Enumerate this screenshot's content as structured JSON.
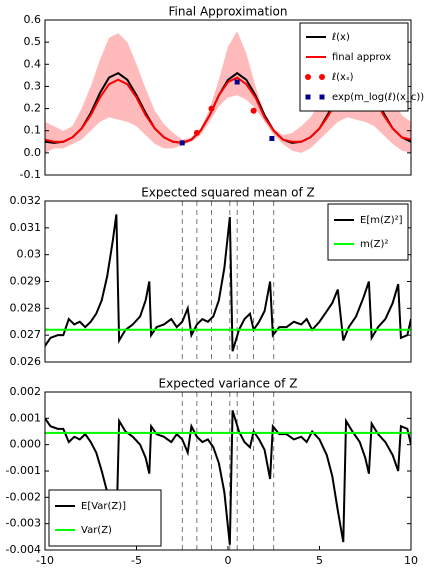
{
  "chart_data": [
    {
      "type": "line",
      "title": "Final Approximation",
      "xlim": [
        -10,
        10
      ],
      "ylim": [
        -0.1,
        0.6
      ],
      "yticks": [
        -0.1,
        {
          "value": 0,
          "label": "0.0"
        },
        0.1,
        0.2,
        0.3,
        0.4,
        0.5,
        0.6
      ],
      "legend": "upper right",
      "x": [
        -10,
        -9.5,
        -9,
        -8.5,
        -8,
        -7.5,
        -7,
        -6.5,
        -6,
        -5.5,
        -5,
        -4.5,
        -4,
        -3.5,
        -3,
        -2.5,
        -2,
        -1.5,
        -1,
        -0.5,
        0,
        0.5,
        1,
        1.5,
        2,
        2.5,
        3,
        3.5,
        4,
        4.5,
        5,
        5.5,
        6,
        6.5,
        7,
        7.5,
        8,
        8.5,
        9,
        9.5,
        10
      ],
      "band": {
        "color": "#ffbbbb",
        "upper": [
          0.14,
          0.12,
          0.1,
          0.12,
          0.2,
          0.3,
          0.42,
          0.52,
          0.54,
          0.5,
          0.4,
          0.29,
          0.19,
          0.13,
          0.09,
          0.06,
          0.07,
          0.11,
          0.2,
          0.33,
          0.48,
          0.55,
          0.45,
          0.3,
          0.18,
          0.11,
          0.08,
          0.09,
          0.12,
          0.16,
          0.22,
          0.3,
          0.4,
          0.5,
          0.55,
          0.52,
          0.44,
          0.34,
          0.24,
          0.17,
          0.14
        ],
        "lower": [
          0.0,
          0.02,
          0.02,
          0.04,
          0.06,
          0.1,
          0.14,
          0.16,
          0.15,
          0.14,
          0.12,
          0.08,
          0.04,
          0.02,
          0.02,
          0.035,
          0.05,
          0.08,
          0.14,
          0.21,
          0.25,
          0.26,
          0.24,
          0.2,
          0.14,
          0.08,
          0.04,
          0.01,
          0.0,
          0.02,
          0.06,
          0.1,
          0.14,
          0.16,
          0.15,
          0.14,
          0.12,
          0.08,
          0.04,
          0.01,
          0.0
        ]
      },
      "series": [
        {
          "name": "ℓ(x)",
          "color": "#000000",
          "kind": "line",
          "values": [
            0.05,
            0.045,
            0.05,
            0.07,
            0.11,
            0.18,
            0.27,
            0.34,
            0.36,
            0.33,
            0.26,
            0.18,
            0.11,
            0.07,
            0.05,
            0.045,
            0.06,
            0.1,
            0.17,
            0.26,
            0.33,
            0.36,
            0.33,
            0.26,
            0.17,
            0.1,
            0.06,
            0.045,
            0.05,
            0.07,
            0.11,
            0.18,
            0.27,
            0.34,
            0.36,
            0.33,
            0.26,
            0.18,
            0.11,
            0.07,
            0.05
          ]
        },
        {
          "name": "final approx",
          "color": "#ff0000",
          "kind": "line",
          "values": [
            0.06,
            0.05,
            0.05,
            0.07,
            0.11,
            0.17,
            0.25,
            0.31,
            0.33,
            0.31,
            0.25,
            0.17,
            0.11,
            0.07,
            0.05,
            0.045,
            0.06,
            0.1,
            0.17,
            0.26,
            0.32,
            0.34,
            0.31,
            0.25,
            0.16,
            0.1,
            0.06,
            0.05,
            0.05,
            0.07,
            0.11,
            0.17,
            0.25,
            0.31,
            0.33,
            0.31,
            0.25,
            0.17,
            0.11,
            0.07,
            0.06
          ]
        },
        {
          "name": "ℓ(xₛ)",
          "color": "#ff0000",
          "kind": "scatter",
          "marker": "circle",
          "x": [
            -1.7,
            -0.9,
            1.4
          ],
          "values": [
            0.09,
            0.2,
            0.19
          ]
        },
        {
          "name": "exp(m_log(ℓ)(x_c))",
          "color": "#00008b",
          "kind": "scatter",
          "marker": "square",
          "x": [
            -2.5,
            0.5,
            2.4
          ],
          "values": [
            0.045,
            0.32,
            0.065
          ]
        }
      ]
    },
    {
      "type": "line",
      "title": "Expected squared mean of Z",
      "xlim": [
        -10,
        10
      ],
      "ylim": [
        0.026,
        0.032
      ],
      "yticks": [
        0.026,
        0.027,
        0.028,
        0.029,
        0.03,
        0.031,
        0.032
      ],
      "legend": "upper right",
      "vlines": [
        -2.5,
        -1.7,
        -0.9,
        0.1,
        0.5,
        1.4,
        2.5
      ],
      "series": [
        {
          "name": "E[m(Z)²]",
          "color": "#000000",
          "kind": "line",
          "x": [
            -10,
            -9.7,
            -9.3,
            -9,
            -8.7,
            -8.4,
            -8.1,
            -7.8,
            -7.5,
            -7.2,
            -6.9,
            -6.6,
            -6.3,
            -6.1,
            -5.95,
            -5.6,
            -5.2,
            -4.8,
            -4.5,
            -4.3,
            -4.2,
            -3.9,
            -3.5,
            -3.1,
            -2.8,
            -2.5,
            -2.2,
            -2.0,
            -1.7,
            -1.4,
            -1.1,
            -0.8,
            -0.5,
            -0.2,
            0.1,
            0.25,
            0.6,
            0.9,
            1.2,
            1.4,
            1.7,
            2.0,
            2.3,
            2.45,
            2.8,
            3.2,
            3.6,
            4.0,
            4.3,
            4.6,
            5.0,
            5.4,
            5.7,
            6.0,
            6.3,
            6.6,
            7.0,
            7.4,
            7.7,
            7.85,
            8.2,
            8.6,
            9.0,
            9.3,
            9.45,
            9.8,
            10
          ],
          "values": [
            0.0266,
            0.0269,
            0.027,
            0.027,
            0.0276,
            0.0274,
            0.0275,
            0.0273,
            0.0275,
            0.0278,
            0.0283,
            0.0292,
            0.0305,
            0.0315,
            0.0268,
            0.0272,
            0.0274,
            0.0277,
            0.0283,
            0.029,
            0.027,
            0.0273,
            0.0274,
            0.0276,
            0.0273,
            0.0275,
            0.028,
            0.027,
            0.0274,
            0.0276,
            0.0275,
            0.0277,
            0.0283,
            0.0295,
            0.0314,
            0.0264,
            0.0272,
            0.0276,
            0.0278,
            0.0272,
            0.0275,
            0.0279,
            0.029,
            0.027,
            0.0273,
            0.0273,
            0.0275,
            0.0274,
            0.0276,
            0.0272,
            0.0275,
            0.0279,
            0.0282,
            0.0287,
            0.0268,
            0.0273,
            0.0277,
            0.0284,
            0.029,
            0.0269,
            0.0273,
            0.0276,
            0.0282,
            0.0289,
            0.0269,
            0.027,
            0.0276
          ]
        },
        {
          "name": "m(Z)²",
          "color": "#00ff00",
          "kind": "hline",
          "values": [
            0.0272
          ]
        }
      ]
    },
    {
      "type": "line",
      "title": "Expected variance of Z",
      "xlim": [
        -10,
        10
      ],
      "ylim": [
        -0.004,
        0.002
      ],
      "xticks": [
        -10,
        -5,
        0,
        5,
        10
      ],
      "yticks": [
        -0.004,
        -0.003,
        -0.002,
        -0.001,
        {
          "value": 0,
          "label": "0.000"
        },
        0.001,
        0.002
      ],
      "legend": "lower left",
      "vlines": [
        -2.5,
        -1.7,
        -0.9,
        0.1,
        0.5,
        1.4,
        2.5
      ],
      "series": [
        {
          "name": "E[Var(Z)]",
          "color": "#000000",
          "kind": "line",
          "x": [
            -10,
            -9.7,
            -9.3,
            -9,
            -8.7,
            -8.4,
            -8.1,
            -7.8,
            -7.5,
            -7.2,
            -6.9,
            -6.6,
            -6.3,
            -6.1,
            -5.95,
            -5.6,
            -5.2,
            -4.8,
            -4.5,
            -4.3,
            -4.2,
            -3.9,
            -3.5,
            -3.1,
            -2.8,
            -2.5,
            -2.2,
            -2.0,
            -1.7,
            -1.4,
            -1.1,
            -0.8,
            -0.5,
            -0.2,
            0.1,
            0.25,
            0.6,
            0.9,
            1.2,
            1.4,
            1.7,
            2.0,
            2.3,
            2.45,
            2.8,
            3.2,
            3.6,
            4.0,
            4.3,
            4.6,
            5.0,
            5.4,
            5.7,
            6.0,
            6.3,
            6.45,
            6.8,
            7.2,
            7.5,
            7.7,
            7.85,
            8.2,
            8.6,
            9.0,
            9.3,
            9.45,
            9.8,
            10
          ],
          "values": [
            0.001,
            0.0007,
            0.0006,
            0.0006,
            0.0001,
            0.0003,
            0.0002,
            0.0004,
            0.0001,
            -0.0003,
            -0.001,
            -0.0018,
            -0.0027,
            -0.0033,
            0.0009,
            0.0005,
            0.0003,
            0.0,
            -0.0005,
            -0.0011,
            0.0007,
            0.0004,
            0.0003,
            0.0001,
            0.0004,
            0.0002,
            -0.0003,
            0.0007,
            0.0003,
            0.0001,
            0.0002,
            -0.0001,
            -0.0007,
            -0.0018,
            -0.0038,
            0.0013,
            0.0005,
            0.0001,
            -0.0001,
            0.0005,
            0.0002,
            -0.0002,
            -0.0013,
            0.0007,
            0.0004,
            0.0004,
            0.0002,
            0.0003,
            0.0001,
            0.0005,
            0.0002,
            -0.0004,
            -0.0012,
            -0.0025,
            -0.0037,
            0.0009,
            0.0005,
            0.0001,
            -0.0005,
            -0.0011,
            0.0008,
            0.0004,
            0.0001,
            -0.0004,
            -0.001,
            0.0007,
            0.0006,
            0.0
          ]
        },
        {
          "name": "Var(Z)",
          "color": "#00ff00",
          "kind": "hline",
          "values": [
            0.00045
          ]
        }
      ]
    }
  ]
}
